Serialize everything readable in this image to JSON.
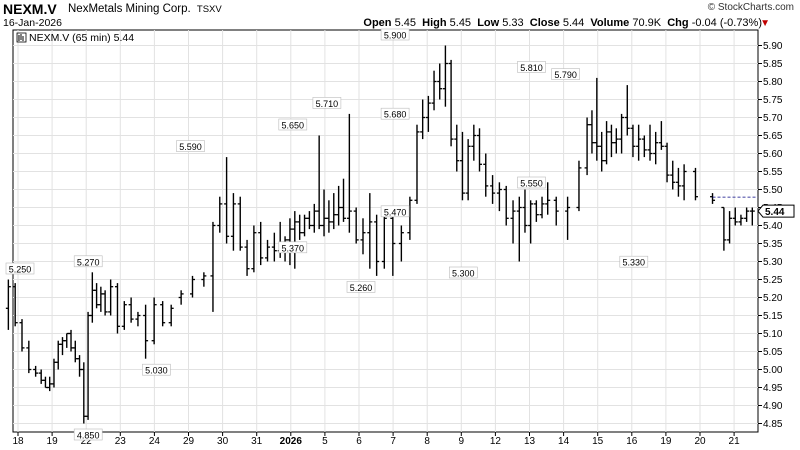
{
  "header": {
    "ticker": "NEXM.V",
    "company": "NexMetals Mining Corp.",
    "exchange": "TSXV",
    "date": "16-Jan-2026",
    "copyright": "© StockCharts.com",
    "open_label": "Open",
    "open": "5.45",
    "high_label": "High",
    "high": "5.45",
    "low_label": "Low",
    "low": "5.33",
    "close_label": "Close",
    "close": "5.44",
    "volume_label": "Volume",
    "volume": "70.9K",
    "chg_label": "Chg",
    "chg": "-0.04 (-0.73%)",
    "down_arrow_icon": "triangle-down-icon",
    "accent_color": "#c00000"
  },
  "chart_data": {
    "type": "ohlc",
    "legend": "NEXM.V (65 min) 5.44",
    "last_price_label": "5.44",
    "ylim": [
      4.8,
      5.93
    ],
    "yticks": [
      "4.85",
      "4.90",
      "4.95",
      "5.00",
      "5.05",
      "5.10",
      "5.15",
      "5.20",
      "5.25",
      "5.30",
      "5.35",
      "5.40",
      "5.45",
      "5.50",
      "5.55",
      "5.60",
      "5.65",
      "5.70",
      "5.75",
      "5.80",
      "5.85",
      "5.90"
    ],
    "x_labels": [
      "18",
      "19",
      "22",
      "23",
      "24",
      "29",
      "30",
      "31",
      "2026",
      "5",
      "6",
      "7",
      "8",
      "9",
      "12",
      "13",
      "14",
      "15",
      "16",
      "19",
      "20",
      "21"
    ],
    "x_label_bold": "2026",
    "annotations": [
      {
        "text": "5.250",
        "session": 0,
        "price": 5.25,
        "pos": "above"
      },
      {
        "text": "4.850",
        "session": 2,
        "price": 4.85,
        "pos": "below"
      },
      {
        "text": "5.270",
        "session": 2,
        "price": 5.27,
        "pos": "above"
      },
      {
        "text": "5.030",
        "session": 4,
        "price": 5.03,
        "pos": "below"
      },
      {
        "text": "5.590",
        "session": 5,
        "price": 5.59,
        "pos": "above"
      },
      {
        "text": "5.650",
        "session": 8,
        "price": 5.65,
        "pos": "above"
      },
      {
        "text": "5.370",
        "session": 8,
        "price": 5.37,
        "pos": "below"
      },
      {
        "text": "5.710",
        "session": 9,
        "price": 5.71,
        "pos": "above"
      },
      {
        "text": "5.260",
        "session": 10,
        "price": 5.26,
        "pos": "below"
      },
      {
        "text": "5.900",
        "session": 11,
        "price": 5.9,
        "pos": "above"
      },
      {
        "text": "5.680",
        "session": 11,
        "price": 5.68,
        "pos": "above"
      },
      {
        "text": "5.470",
        "session": 11,
        "price": 5.47,
        "pos": "below"
      },
      {
        "text": "5.300",
        "session": 13,
        "price": 5.3,
        "pos": "below"
      },
      {
        "text": "5.810",
        "session": 15,
        "price": 5.81,
        "pos": "above"
      },
      {
        "text": "5.550",
        "session": 15,
        "price": 5.55,
        "pos": "below"
      },
      {
        "text": "5.790",
        "session": 16,
        "price": 5.79,
        "pos": "above"
      },
      {
        "text": "5.330",
        "session": 18,
        "price": 5.33,
        "pos": "below"
      }
    ],
    "bars": [
      [
        5.17,
        5.25,
        5.11,
        5.23
      ],
      [
        5.23,
        5.24,
        5.12,
        5.13
      ],
      [
        5.13,
        5.14,
        5.05,
        5.06
      ],
      [
        5.06,
        5.08,
        4.99,
        5.0
      ],
      [
        5.0,
        5.01,
        4.98,
        4.99
      ],
      [
        4.99,
        5.0,
        4.96,
        4.97
      ],
      [
        4.97,
        4.98,
        4.95,
        4.95
      ],
      [
        4.95,
        4.98,
        4.94,
        4.96
      ],
      [
        4.96,
        5.03,
        4.95,
        5.02
      ],
      [
        5.02,
        5.08,
        5.0,
        5.07
      ],
      [
        5.07,
        5.09,
        5.04,
        5.08
      ],
      [
        5.08,
        5.1,
        5.06,
        5.1
      ],
      [
        5.1,
        5.11,
        5.05,
        5.06
      ],
      [
        5.06,
        5.08,
        5.02,
        5.03
      ],
      [
        5.03,
        5.04,
        4.98,
        5.0
      ],
      [
        5.0,
        5.02,
        4.85,
        4.87
      ],
      [
        4.87,
        5.16,
        4.86,
        5.15
      ],
      [
        5.15,
        5.27,
        5.13,
        5.22
      ],
      [
        5.22,
        5.24,
        5.17,
        5.18
      ],
      [
        5.18,
        5.23,
        5.16,
        5.21
      ],
      [
        5.21,
        5.22,
        5.15,
        5.16
      ],
      [
        5.16,
        5.25,
        5.15,
        5.23
      ],
      [
        5.23,
        5.24,
        5.1,
        5.12
      ],
      [
        5.12,
        5.19,
        5.11,
        5.18
      ],
      [
        5.18,
        5.2,
        5.13,
        5.14
      ],
      [
        5.14,
        5.16,
        5.12,
        5.15
      ],
      [
        5.15,
        5.18,
        5.03,
        5.08
      ],
      [
        5.08,
        5.2,
        5.07,
        5.18
      ],
      [
        5.18,
        5.19,
        5.12,
        5.13
      ],
      [
        5.13,
        5.18,
        5.12,
        5.17
      ],
      [
        5.2,
        5.22,
        5.18,
        5.21
      ],
      [
        5.21,
        5.26,
        5.2,
        5.25
      ],
      [
        5.25,
        5.27,
        5.23,
        5.26
      ],
      [
        5.26,
        5.41,
        5.16,
        5.4
      ],
      [
        5.4,
        5.48,
        5.38,
        5.46
      ],
      [
        5.46,
        5.59,
        5.35,
        5.37
      ],
      [
        5.37,
        5.49,
        5.33,
        5.46
      ],
      [
        5.46,
        5.48,
        5.33,
        5.34
      ],
      [
        5.34,
        5.36,
        5.26,
        5.28
      ],
      [
        5.28,
        5.4,
        5.27,
        5.38
      ],
      [
        5.38,
        5.41,
        5.29,
        5.31
      ],
      [
        5.31,
        5.36,
        5.3,
        5.34
      ],
      [
        5.34,
        5.38,
        5.3,
        5.33
      ],
      [
        5.33,
        5.41,
        5.31,
        5.35
      ],
      [
        5.35,
        5.37,
        5.3,
        5.36
      ],
      [
        5.36,
        5.42,
        5.29,
        5.39
      ],
      [
        5.39,
        5.44,
        5.28,
        5.41
      ],
      [
        5.41,
        5.43,
        5.36,
        5.38
      ],
      [
        5.38,
        5.43,
        5.37,
        5.42
      ],
      [
        5.42,
        5.44,
        5.39,
        5.4
      ],
      [
        5.4,
        5.46,
        5.38,
        5.44
      ],
      [
        5.44,
        5.65,
        5.39,
        5.4
      ],
      [
        5.4,
        5.5,
        5.37,
        5.42
      ],
      [
        5.42,
        5.47,
        5.38,
        5.41
      ],
      [
        5.41,
        5.49,
        5.39,
        5.43
      ],
      [
        5.43,
        5.51,
        5.4,
        5.45
      ],
      [
        5.45,
        5.53,
        5.41,
        5.42
      ],
      [
        5.42,
        5.71,
        5.38,
        5.44
      ],
      [
        5.44,
        5.45,
        5.35,
        5.36
      ],
      [
        5.36,
        5.42,
        5.32,
        5.38
      ],
      [
        5.38,
        5.49,
        5.28,
        5.41
      ],
      [
        5.41,
        5.43,
        5.26,
        5.3
      ],
      [
        5.3,
        5.44,
        5.28,
        5.42
      ],
      [
        5.42,
        5.45,
        5.26,
        5.35
      ],
      [
        5.35,
        5.4,
        5.3,
        5.38
      ],
      [
        5.38,
        5.48,
        5.36,
        5.47
      ],
      [
        5.47,
        5.68,
        5.46,
        5.66
      ],
      [
        5.66,
        5.75,
        5.64,
        5.7
      ],
      [
        5.7,
        5.76,
        5.66,
        5.74
      ],
      [
        5.74,
        5.83,
        5.72,
        5.8
      ],
      [
        5.8,
        5.85,
        5.75,
        5.78
      ],
      [
        5.78,
        5.9,
        5.73,
        5.85
      ],
      [
        5.85,
        5.86,
        5.62,
        5.64
      ],
      [
        5.64,
        5.68,
        5.55,
        5.58
      ],
      [
        5.58,
        5.66,
        5.47,
        5.49
      ],
      [
        5.49,
        5.64,
        5.47,
        5.62
      ],
      [
        5.62,
        5.68,
        5.58,
        5.65
      ],
      [
        5.65,
        5.67,
        5.55,
        5.57
      ],
      [
        5.57,
        5.6,
        5.48,
        5.51
      ],
      [
        5.51,
        5.54,
        5.46,
        5.49
      ],
      [
        5.49,
        5.52,
        5.44,
        5.5
      ],
      [
        5.5,
        5.51,
        5.4,
        5.42
      ],
      [
        5.42,
        5.47,
        5.35,
        5.44
      ],
      [
        5.44,
        5.48,
        5.3,
        5.45
      ],
      [
        5.45,
        5.5,
        5.38,
        5.4
      ],
      [
        5.4,
        5.47,
        5.35,
        5.46
      ],
      [
        5.46,
        5.47,
        5.41,
        5.43
      ],
      [
        5.43,
        5.48,
        5.42,
        5.46
      ],
      [
        5.46,
        5.52,
        5.43,
        5.47
      ],
      [
        5.47,
        5.48,
        5.4,
        5.44
      ],
      [
        5.44,
        5.48,
        5.36,
        5.45
      ],
      [
        5.45,
        5.58,
        5.44,
        5.56
      ],
      [
        5.56,
        5.7,
        5.54,
        5.68
      ],
      [
        5.68,
        5.72,
        5.6,
        5.63
      ],
      [
        5.63,
        5.81,
        5.58,
        5.62
      ],
      [
        5.62,
        5.66,
        5.55,
        5.58
      ],
      [
        5.58,
        5.69,
        5.57,
        5.66
      ],
      [
        5.66,
        5.68,
        5.59,
        5.63
      ],
      [
        5.63,
        5.67,
        5.6,
        5.64
      ],
      [
        5.64,
        5.71,
        5.6,
        5.7
      ],
      [
        5.7,
        5.79,
        5.65,
        5.67
      ],
      [
        5.67,
        5.68,
        5.59,
        5.62
      ],
      [
        5.62,
        5.68,
        5.58,
        5.64
      ],
      [
        5.64,
        5.65,
        5.59,
        5.61
      ],
      [
        5.61,
        5.68,
        5.58,
        5.6
      ],
      [
        5.6,
        5.66,
        5.57,
        5.63
      ],
      [
        5.63,
        5.69,
        5.61,
        5.62
      ],
      [
        5.62,
        5.63,
        5.52,
        5.54
      ],
      [
        5.54,
        5.58,
        5.5,
        5.52
      ],
      [
        5.52,
        5.56,
        5.48,
        5.51
      ],
      [
        5.51,
        5.57,
        5.47,
        5.55
      ],
      [
        5.55,
        5.56,
        5.47,
        5.48
      ],
      [
        5.48,
        5.49,
        5.46,
        5.47
      ],
      [
        5.45,
        5.45,
        5.33,
        5.36
      ],
      [
        5.36,
        5.44,
        5.35,
        5.42
      ],
      [
        5.42,
        5.45,
        5.4,
        5.41
      ],
      [
        5.41,
        5.43,
        5.4,
        5.42
      ],
      [
        5.42,
        5.45,
        5.41,
        5.44
      ],
      [
        5.44,
        5.45,
        5.4,
        5.44
      ]
    ],
    "sessions": [
      0,
      0,
      0,
      0,
      0,
      1,
      1,
      1,
      1,
      1,
      1,
      1,
      1,
      2,
      2,
      2,
      2,
      2,
      2,
      2,
      2,
      3,
      3,
      3,
      3,
      3,
      4,
      4,
      4,
      4,
      5,
      5,
      5,
      6,
      6,
      6,
      6,
      6,
      7,
      7,
      7,
      7,
      7,
      8,
      8,
      8,
      8,
      8,
      8,
      8,
      9,
      9,
      9,
      9,
      9,
      9,
      9,
      10,
      10,
      10,
      10,
      10,
      11,
      11,
      11,
      11,
      12,
      12,
      12,
      12,
      12,
      12,
      13,
      13,
      13,
      13,
      13,
      13,
      14,
      14,
      14,
      14,
      14,
      15,
      15,
      15,
      15,
      15,
      15,
      16,
      16,
      16,
      17,
      17,
      17,
      17,
      17,
      17,
      17,
      18,
      18,
      18,
      18,
      18,
      18,
      19,
      19,
      19,
      19,
      19,
      19,
      20,
      20,
      21,
      21,
      21,
      21,
      21,
      21
    ],
    "grid": true,
    "up_color": "#000000",
    "last_line_color": "#000080"
  }
}
